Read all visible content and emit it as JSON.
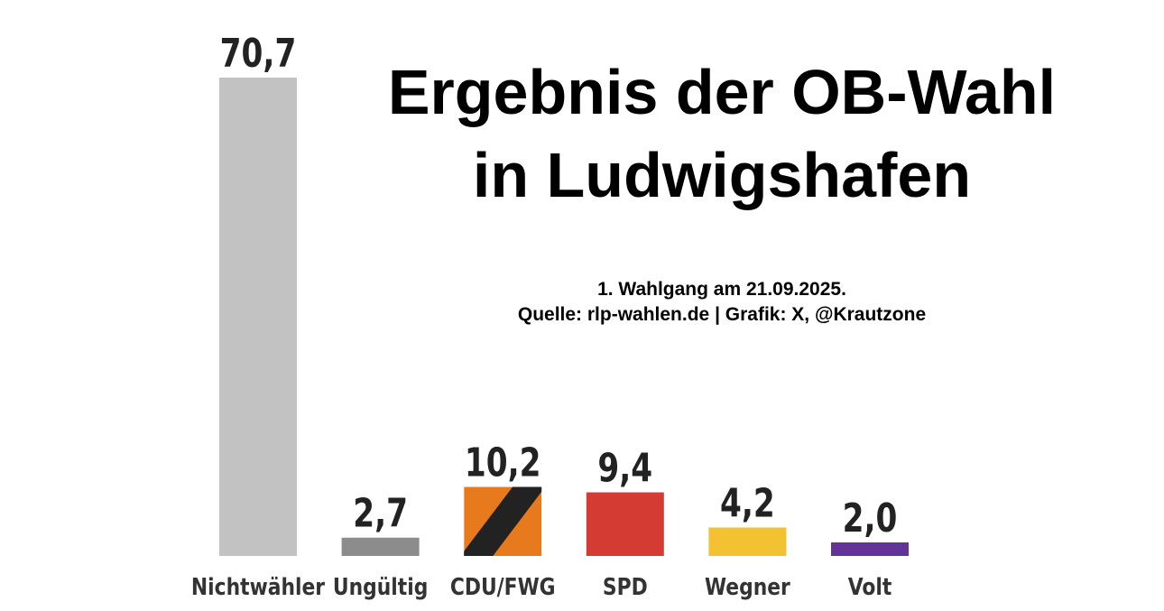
{
  "chart_data": {
    "type": "bar",
    "title_lines": [
      "Ergebnis der OB-Wahl",
      "in Ludwigshafen"
    ],
    "subtitle_lines": [
      "1. Wahlgang am 21.09.2025.",
      "Quelle: rlp-wahlen.de | Grafik: X, @Krautzone"
    ],
    "categories": [
      "Nichtwähler",
      "Ungültig",
      "CDU/FWG",
      "SPD",
      "Wegner",
      "Volt"
    ],
    "values": [
      70.7,
      2.7,
      10.2,
      9.4,
      4.2,
      2.0
    ],
    "value_labels": [
      "70,7",
      "2,7",
      "10,2",
      "9,4",
      "4,2",
      "2,0"
    ],
    "colors": [
      "#c2c2c2",
      "#8c8c8c",
      "#e87a1e",
      "#d33b33",
      "#f2c232",
      "#633498"
    ],
    "stripe_color": "#222222",
    "striped": [
      false,
      false,
      true,
      false,
      false,
      false
    ],
    "ylim": [
      0,
      70.7
    ],
    "grid": false,
    "xlabel": "",
    "ylabel": ""
  }
}
